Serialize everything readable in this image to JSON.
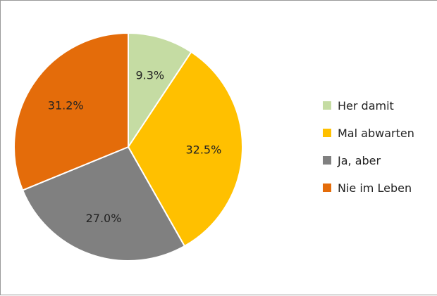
{
  "chart_data": {
    "type": "pie",
    "title": "",
    "legend_position": "right",
    "start_angle_deg": 0,
    "direction": "clockwise",
    "slices": [
      {
        "name": "Her damit",
        "value": 9.3,
        "label": "9.3%",
        "color": "#c5dca3"
      },
      {
        "name": "Mal abwarten",
        "value": 32.5,
        "label": "32.5%",
        "color": "#ffc000"
      },
      {
        "name": "Ja, aber",
        "value": 27.0,
        "label": "27.0%",
        "color": "#808080"
      },
      {
        "name": "Nie im Leben",
        "value": 31.2,
        "label": "31.2%",
        "color": "#e46c0a"
      }
    ]
  }
}
